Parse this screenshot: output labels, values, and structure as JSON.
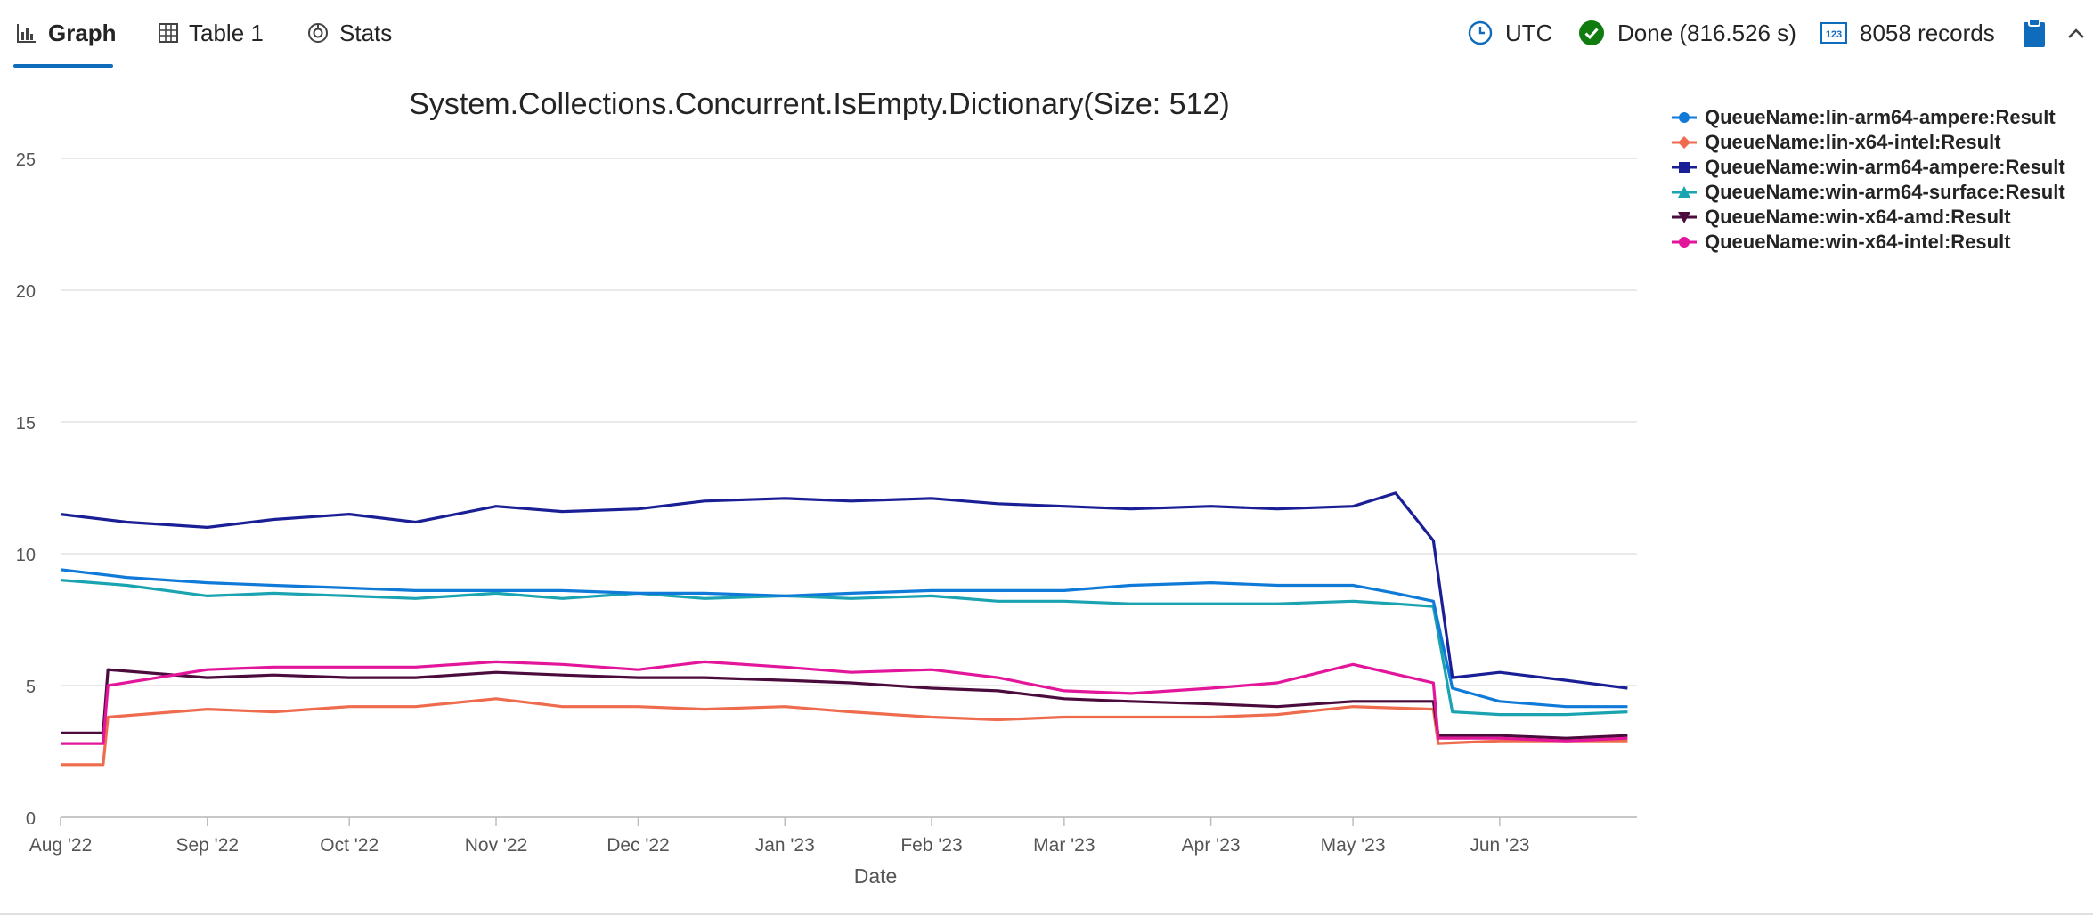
{
  "tabs": [
    {
      "label": "Graph",
      "icon": "bar-chart-icon",
      "active": true
    },
    {
      "label": "Table 1",
      "icon": "table-icon",
      "active": false
    },
    {
      "label": "Stats",
      "icon": "stats-icon",
      "active": false
    }
  ],
  "status": {
    "timezone": "UTC",
    "state": "Done (816.526 s)",
    "records": "8058 records"
  },
  "colors": {
    "accent": "#0f6cbd",
    "done_green": "#107c10"
  },
  "chart_data": {
    "type": "line",
    "title": "System.Collections.Concurrent.IsEmpty.Dictionary(Size: 512)",
    "xlabel": "Date",
    "ylabel": "",
    "ylim": [
      0,
      25
    ],
    "yticks": [
      0,
      5,
      10,
      15,
      20,
      25
    ],
    "xlim": [
      "2022-08-01",
      "2023-06-30"
    ],
    "xticks": [
      {
        "label": "Aug '22",
        "date": "2022-08-01"
      },
      {
        "label": "Sep '22",
        "date": "2022-09-01"
      },
      {
        "label": "Oct '22",
        "date": "2022-10-01"
      },
      {
        "label": "Nov '22",
        "date": "2022-11-01"
      },
      {
        "label": "Dec '22",
        "date": "2022-12-01"
      },
      {
        "label": "Jan '23",
        "date": "2023-01-01"
      },
      {
        "label": "Feb '23",
        "date": "2023-02-01"
      },
      {
        "label": "Mar '23",
        "date": "2023-03-01"
      },
      {
        "label": "Apr '23",
        "date": "2023-04-01"
      },
      {
        "label": "May '23",
        "date": "2023-05-01"
      },
      {
        "label": "Jun '23",
        "date": "2023-06-01"
      }
    ],
    "grid": "horizontal",
    "legend_position": "top-right",
    "series": [
      {
        "name": "QueueName:lin-arm64-ampere:Result",
        "color": "#0f7ad8",
        "marker": "circle",
        "x": [
          "2022-08-01",
          "2022-08-15",
          "2022-09-01",
          "2022-09-15",
          "2022-10-01",
          "2022-10-15",
          "2022-11-01",
          "2022-11-15",
          "2022-12-01",
          "2022-12-15",
          "2023-01-01",
          "2023-01-15",
          "2023-02-01",
          "2023-02-15",
          "2023-03-01",
          "2023-03-15",
          "2023-04-01",
          "2023-04-15",
          "2023-05-01",
          "2023-05-10",
          "2023-05-18",
          "2023-05-22",
          "2023-06-01",
          "2023-06-15",
          "2023-06-28"
        ],
        "y": [
          9.4,
          9.1,
          8.9,
          8.8,
          8.7,
          8.6,
          8.6,
          8.6,
          8.5,
          8.5,
          8.4,
          8.5,
          8.6,
          8.6,
          8.6,
          8.8,
          8.9,
          8.8,
          8.8,
          8.5,
          8.2,
          4.9,
          4.4,
          4.2,
          4.2
        ]
      },
      {
        "name": "QueueName:lin-x64-intel:Result",
        "color": "#ee6b4e",
        "marker": "diamond",
        "x": [
          "2022-08-01",
          "2022-08-10",
          "2022-08-11",
          "2022-09-01",
          "2022-09-15",
          "2022-10-01",
          "2022-10-15",
          "2022-11-01",
          "2022-11-15",
          "2022-12-01",
          "2022-12-15",
          "2023-01-01",
          "2023-01-15",
          "2023-02-01",
          "2023-02-15",
          "2023-03-01",
          "2023-03-15",
          "2023-04-01",
          "2023-04-15",
          "2023-05-01",
          "2023-05-18",
          "2023-05-19",
          "2023-06-01",
          "2023-06-15",
          "2023-06-28"
        ],
        "y": [
          2.0,
          2.0,
          3.8,
          4.1,
          4.0,
          4.2,
          4.2,
          4.5,
          4.2,
          4.2,
          4.1,
          4.2,
          4.0,
          3.8,
          3.7,
          3.8,
          3.8,
          3.8,
          3.9,
          4.2,
          4.1,
          2.8,
          2.9,
          2.9,
          2.9
        ]
      },
      {
        "name": "QueueName:win-arm64-ampere:Result",
        "color": "#1a1f96",
        "marker": "square",
        "x": [
          "2022-08-01",
          "2022-08-15",
          "2022-09-01",
          "2022-09-15",
          "2022-10-01",
          "2022-10-15",
          "2022-11-01",
          "2022-11-15",
          "2022-12-01",
          "2022-12-15",
          "2023-01-01",
          "2023-01-15",
          "2023-02-01",
          "2023-02-15",
          "2023-03-01",
          "2023-03-15",
          "2023-04-01",
          "2023-04-15",
          "2023-05-01",
          "2023-05-10",
          "2023-05-18",
          "2023-05-22",
          "2023-06-01",
          "2023-06-15",
          "2023-06-28"
        ],
        "y": [
          11.5,
          11.2,
          11.0,
          11.3,
          11.5,
          11.2,
          11.8,
          11.6,
          11.7,
          12.0,
          12.1,
          12.0,
          12.1,
          11.9,
          11.8,
          11.7,
          11.8,
          11.7,
          11.8,
          12.3,
          10.5,
          5.3,
          5.5,
          5.2,
          4.9
        ]
      },
      {
        "name": "QueueName:win-arm64-surface:Result",
        "color": "#1aa3b0",
        "marker": "triangle",
        "x": [
          "2022-08-01",
          "2022-08-15",
          "2022-09-01",
          "2022-09-15",
          "2022-10-01",
          "2022-10-15",
          "2022-11-01",
          "2022-11-15",
          "2022-12-01",
          "2022-12-15",
          "2023-01-01",
          "2023-01-15",
          "2023-02-01",
          "2023-02-15",
          "2023-03-01",
          "2023-03-15",
          "2023-04-01",
          "2023-04-15",
          "2023-05-01",
          "2023-05-10",
          "2023-05-18",
          "2023-05-22",
          "2023-06-01",
          "2023-06-15",
          "2023-06-28"
        ],
        "y": [
          9.0,
          8.8,
          8.4,
          8.5,
          8.4,
          8.3,
          8.5,
          8.3,
          8.5,
          8.3,
          8.4,
          8.3,
          8.4,
          8.2,
          8.2,
          8.1,
          8.1,
          8.1,
          8.2,
          8.1,
          8.0,
          4.0,
          3.9,
          3.9,
          4.0
        ]
      },
      {
        "name": "QueueName:win-x64-amd:Result",
        "color": "#4b0b3c",
        "marker": "triangle-down",
        "x": [
          "2022-08-01",
          "2022-08-10",
          "2022-08-11",
          "2022-09-01",
          "2022-09-15",
          "2022-10-01",
          "2022-10-15",
          "2022-11-01",
          "2022-11-15",
          "2022-12-01",
          "2022-12-15",
          "2023-01-01",
          "2023-01-15",
          "2023-02-01",
          "2023-02-15",
          "2023-03-01",
          "2023-03-15",
          "2023-04-01",
          "2023-04-15",
          "2023-05-01",
          "2023-05-18",
          "2023-05-19",
          "2023-06-01",
          "2023-06-15",
          "2023-06-28"
        ],
        "y": [
          3.2,
          3.2,
          5.6,
          5.3,
          5.4,
          5.3,
          5.3,
          5.5,
          5.4,
          5.3,
          5.3,
          5.2,
          5.1,
          4.9,
          4.8,
          4.5,
          4.4,
          4.3,
          4.2,
          4.4,
          4.4,
          3.1,
          3.1,
          3.0,
          3.1
        ]
      },
      {
        "name": "QueueName:win-x64-intel:Result",
        "color": "#e3159a",
        "marker": "circle",
        "x": [
          "2022-08-01",
          "2022-08-10",
          "2022-08-11",
          "2022-09-01",
          "2022-09-15",
          "2022-10-01",
          "2022-10-15",
          "2022-11-01",
          "2022-11-15",
          "2022-12-01",
          "2022-12-15",
          "2023-01-01",
          "2023-01-15",
          "2023-02-01",
          "2023-02-15",
          "2023-03-01",
          "2023-03-15",
          "2023-04-01",
          "2023-04-15",
          "2023-05-01",
          "2023-05-18",
          "2023-05-19",
          "2023-06-01",
          "2023-06-15",
          "2023-06-28"
        ],
        "y": [
          2.8,
          2.8,
          5.0,
          5.6,
          5.7,
          5.7,
          5.7,
          5.9,
          5.8,
          5.6,
          5.9,
          5.7,
          5.5,
          5.6,
          5.3,
          4.8,
          4.7,
          4.9,
          5.1,
          5.8,
          5.1,
          3.0,
          3.0,
          2.9,
          3.0
        ]
      }
    ]
  }
}
